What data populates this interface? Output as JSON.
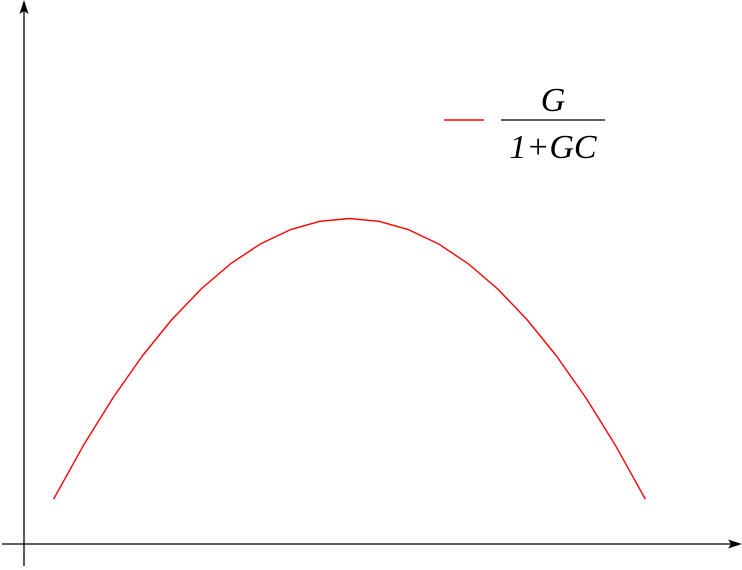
{
  "chart_data": {
    "type": "line",
    "title": "",
    "xlabel": "",
    "ylabel": "",
    "xlim": [
      -0.1,
      2.3
    ],
    "ylim": [
      -0.06,
      1.85
    ],
    "grid": false,
    "legend_position": "top-right",
    "series": [
      {
        "name": "G / (1+GC)",
        "legend_numerator": "G",
        "legend_denominator": "1+GC",
        "color": "#ff0000",
        "x": [
          0.0,
          0.1,
          0.2,
          0.3,
          0.4,
          0.5,
          0.6,
          0.7,
          0.8,
          0.9,
          1.0,
          1.1,
          1.2,
          1.3,
          1.4,
          1.5,
          1.6,
          1.7,
          1.8,
          1.9,
          2.0
        ],
        "y": [
          0.1,
          0.29,
          0.46,
          0.61,
          0.74,
          0.85,
          0.94,
          1.01,
          1.06,
          1.09,
          1.1,
          1.09,
          1.06,
          1.01,
          0.94,
          0.85,
          0.74,
          0.61,
          0.46,
          0.29,
          0.1
        ]
      }
    ]
  },
  "colors": {
    "axis": "#000000",
    "background": "#ffffff"
  }
}
